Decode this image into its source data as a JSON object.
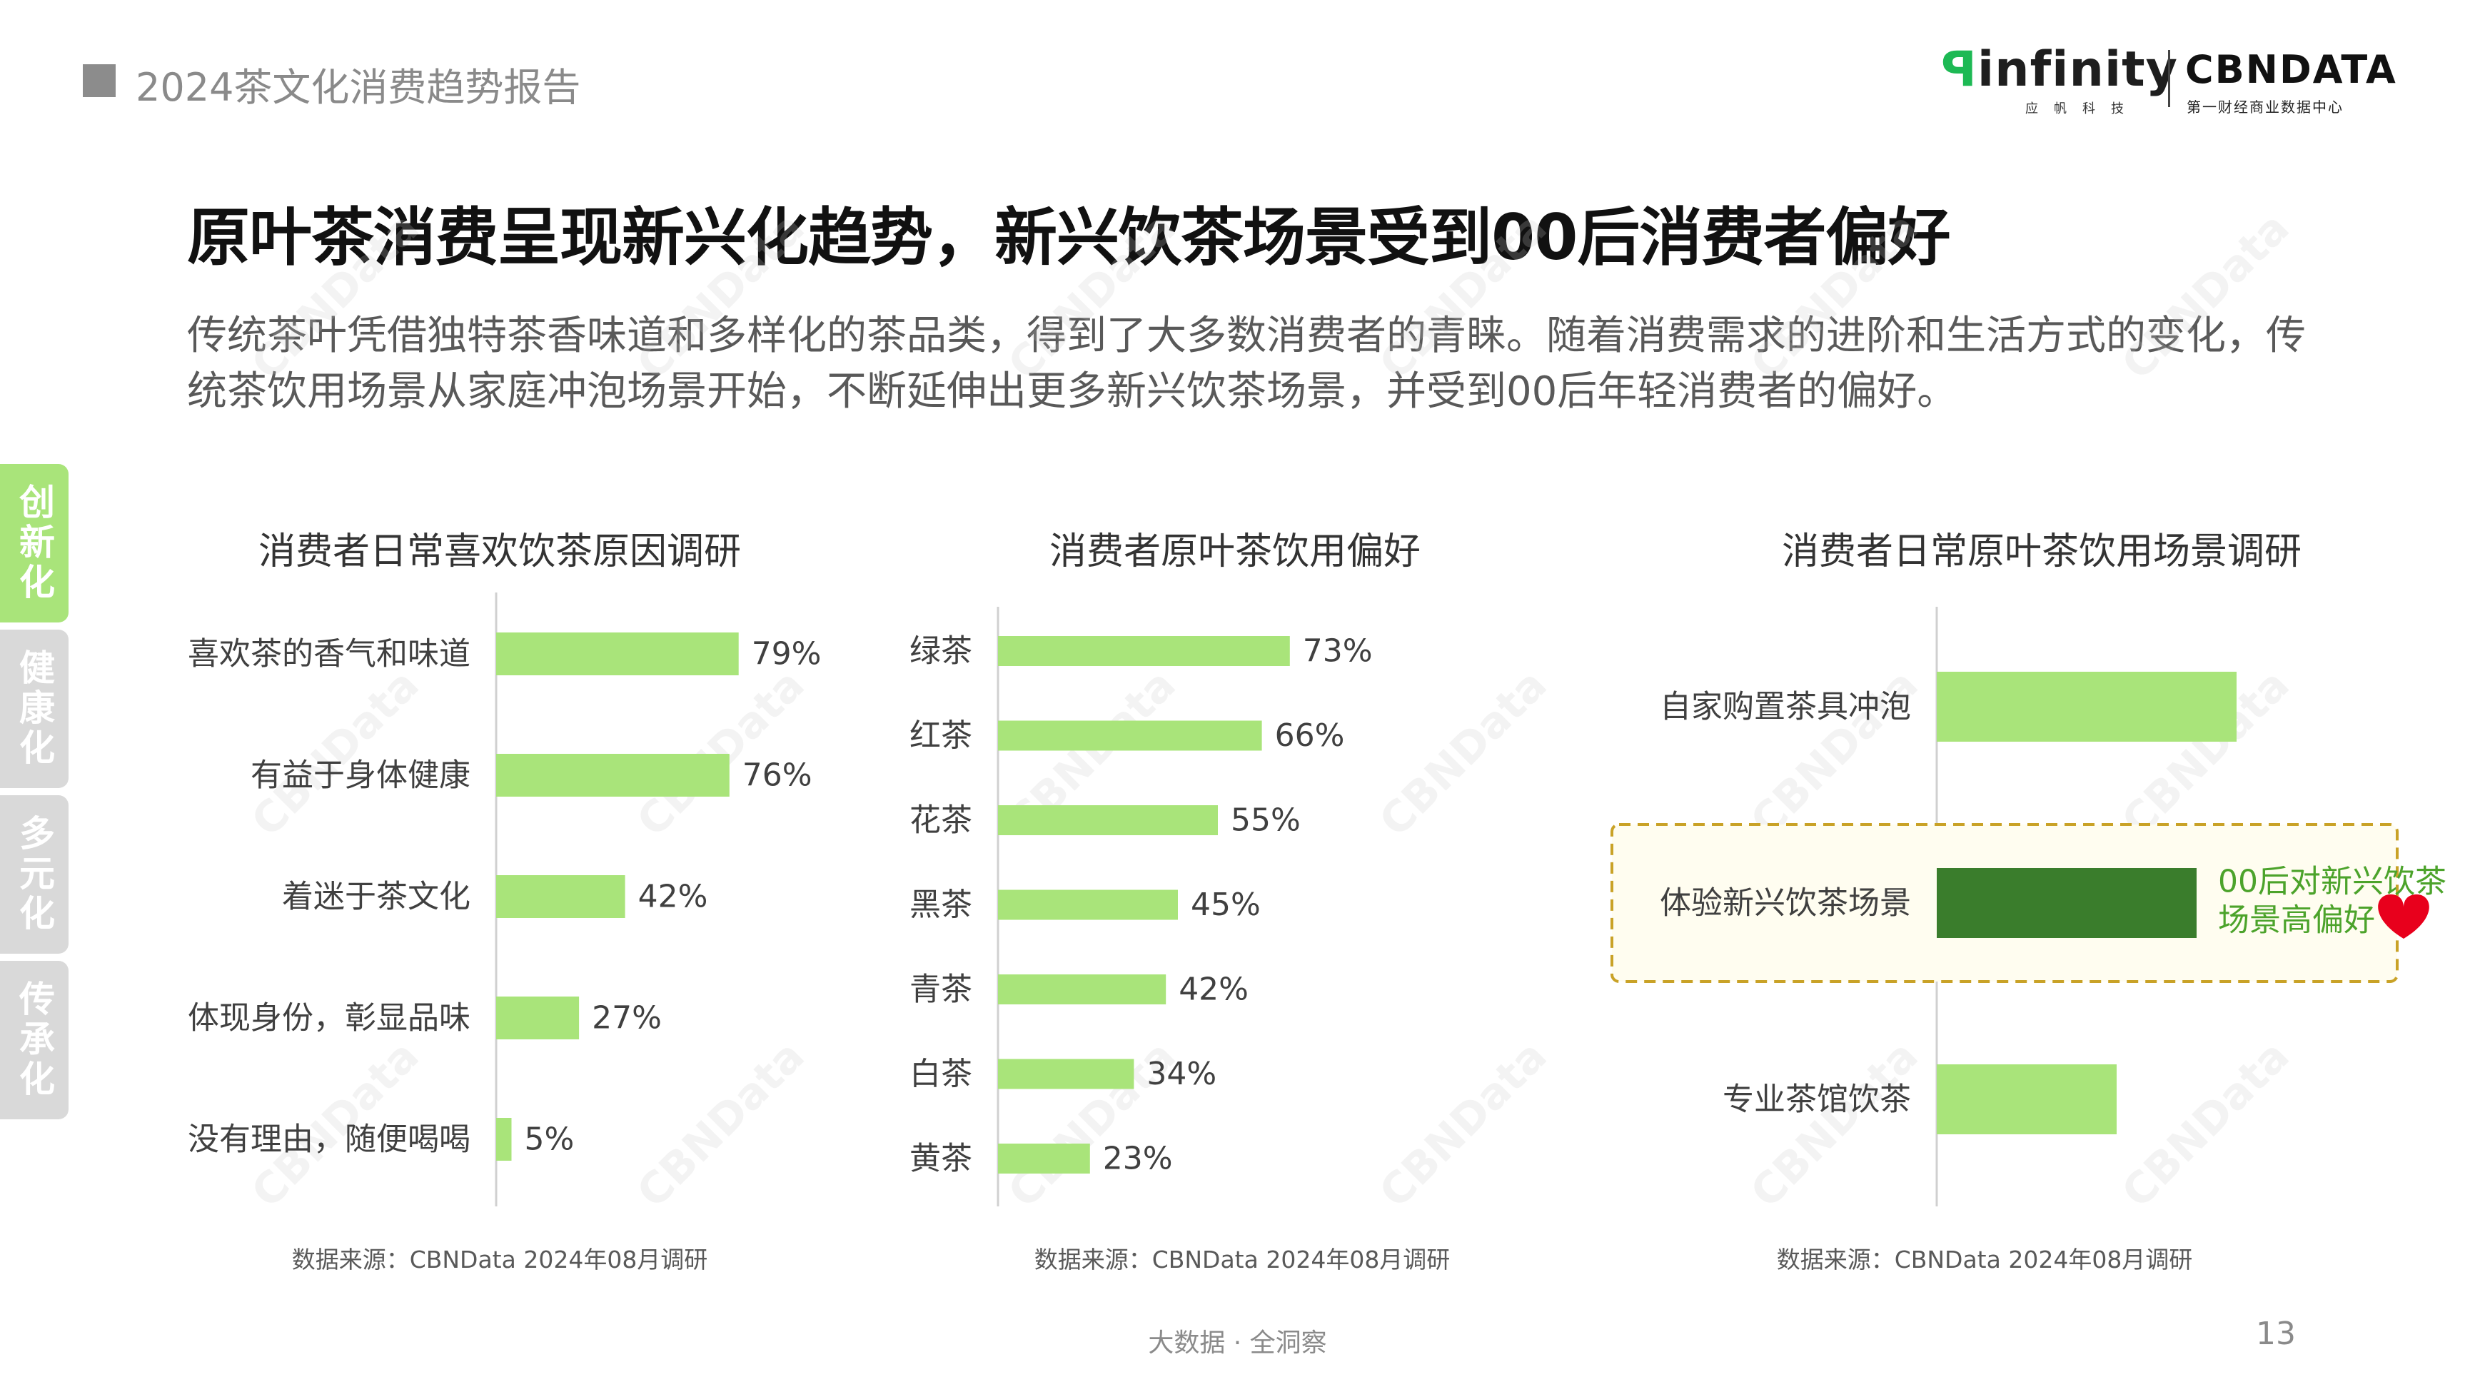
{
  "header": {
    "report_title": "2024茶文化消费趋势报告",
    "logo_infinity": "infinity",
    "logo_infinity_sub": "应帆科技",
    "logo_cbn": "CBNDATA",
    "logo_cbn_sub": "第一财经商业数据中心"
  },
  "headline": "原叶茶消费呈现新兴化趋势，新兴饮茶场景受到00后消费者偏好",
  "intro": "传统茶叶凭借独特茶香味道和多样化的茶品类，得到了大多数消费者的青睐。随着消费需求的进阶和生活方式的变化，传统茶饮用场景从家庭冲泡场景开始，不断延伸出更多新兴饮茶场景，并受到00后年轻消费者的偏好。",
  "side_tabs": [
    "创新化",
    "健康化",
    "多元化",
    "传承化"
  ],
  "colors": {
    "bar": "#a9e47a",
    "highlight": "#3a7d2c",
    "accent_text": "#4ca32b",
    "heart": "#e8001c",
    "dash": "#c9a227"
  },
  "chart_data": [
    {
      "type": "bar",
      "orientation": "horizontal",
      "title": "消费者日常喜欢饮茶原因调研",
      "categories": [
        "喜欢茶的香气和味道",
        "有益于身体健康",
        "着迷于茶文化",
        "体现身份，彰显品味",
        "没有理由，随便喝喝"
      ],
      "values": [
        79,
        76,
        42,
        27,
        5
      ],
      "value_labels": [
        "79%",
        "76%",
        "42%",
        "27%",
        "5%"
      ],
      "xlim": [
        0,
        100
      ],
      "source": "数据来源：CBNData 2024年08月调研"
    },
    {
      "type": "bar",
      "orientation": "horizontal",
      "title": "消费者原叶茶饮用偏好",
      "categories": [
        "绿茶",
        "红茶",
        "花茶",
        "黑茶",
        "青茶",
        "白茶",
        "黄茶"
      ],
      "values": [
        73,
        66,
        55,
        45,
        42,
        34,
        23
      ],
      "value_labels": [
        "73%",
        "66%",
        "55%",
        "45%",
        "42%",
        "34%",
        "23%"
      ],
      "xlim": [
        0,
        100
      ],
      "source": "数据来源：CBNData 2024年08月调研"
    },
    {
      "type": "bar",
      "orientation": "horizontal",
      "title": "消费者日常原叶茶饮用场景调研",
      "categories": [
        "自家购置茶具冲泡",
        "体验新兴饮茶场景",
        "专业茶馆饮茶"
      ],
      "values": [
        75,
        65,
        45
      ],
      "highlight_index": 1,
      "annotation": [
        "00后对新兴饮茶",
        "场景高偏好"
      ],
      "xlim": [
        0,
        100
      ],
      "source": "数据来源：CBNData 2024年08月调研"
    }
  ],
  "footer": {
    "center": "大数据 · 全洞察",
    "page": "13"
  },
  "watermark": "CBNData"
}
